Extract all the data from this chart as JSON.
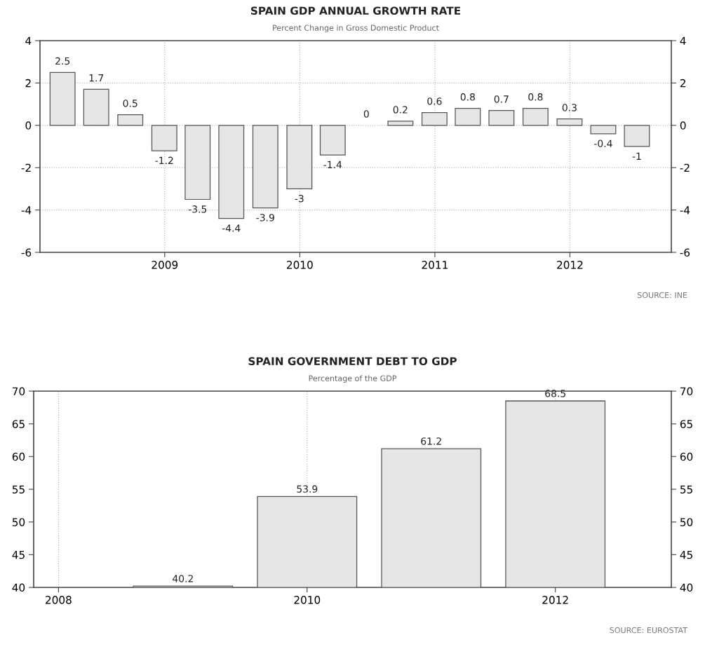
{
  "chart_data": [
    {
      "type": "bar",
      "title": "SPAIN GDP ANNUAL GROWTH RATE",
      "subtitle": "Percent Change in Gross Domestic Product",
      "x": [
        "2008-03-31",
        "2008-06-30",
        "2008-09-30",
        "2008-12-31",
        "2009-03-31",
        "2009-06-30",
        "2009-09-30",
        "2009-12-31",
        "2010-03-31",
        "2010-06-30",
        "2010-09-30",
        "2010-12-31",
        "2011-03-31",
        "2011-06-30",
        "2011-09-30",
        "2011-12-31",
        "2012-03-31",
        "2012-06-30"
      ],
      "values": [
        2.5,
        1.7,
        0.5,
        -1.2,
        -3.5,
        -4.4,
        -3.9,
        -3,
        -1.4,
        0,
        0.2,
        0.6,
        0.8,
        0.7,
        0.8,
        0.3,
        -0.4,
        -1
      ],
      "color": "#e6e6e6",
      "xlim": [
        "2008-01-30",
        "2012-10-01"
      ],
      "xticks": [
        {
          "value": "2009-01-01",
          "label": "2009"
        },
        {
          "value": "2010-01-01",
          "label": "2010"
        },
        {
          "value": "2011-01-01",
          "label": "2011"
        },
        {
          "value": "2012-01-01",
          "label": "2012"
        }
      ],
      "ylim": [
        -6,
        4
      ],
      "yticks": [
        -6,
        -4,
        -2,
        0,
        2,
        4
      ],
      "y2lim": [
        -6,
        4
      ],
      "y2ticks": [
        -6,
        -4,
        -2,
        0,
        2,
        4
      ],
      "grid": true,
      "data_labels": true,
      "annotations": [
        "SOURCE: INE"
      ]
    },
    {
      "type": "bar",
      "title": "SPAIN GOVERNMENT DEBT TO GDP",
      "subtitle": "Percentage of the GDP",
      "x": [
        "2009-01-01",
        "2010-01-01",
        "2011-01-01",
        "2012-01-01"
      ],
      "values": [
        40.2,
        53.9,
        61.2,
        68.5
      ],
      "color": "#e6e6e6",
      "xlim": [
        "2007-10-20",
        "2012-12-07"
      ],
      "xticks": [
        {
          "value": "2008-01-01",
          "label": "2008"
        },
        {
          "value": "2010-01-01",
          "label": "2010"
        },
        {
          "value": "2012-01-01",
          "label": "2012"
        }
      ],
      "ylim": [
        40,
        70
      ],
      "yticks": [
        40,
        45,
        50,
        55,
        60,
        65,
        70
      ],
      "y2lim": [
        40,
        70
      ],
      "y2ticks": [
        40,
        45,
        50,
        55,
        60,
        65,
        70
      ],
      "grid": "x",
      "data_labels": true,
      "annotations": [
        "SOURCE: EUROSTAT"
      ]
    }
  ]
}
